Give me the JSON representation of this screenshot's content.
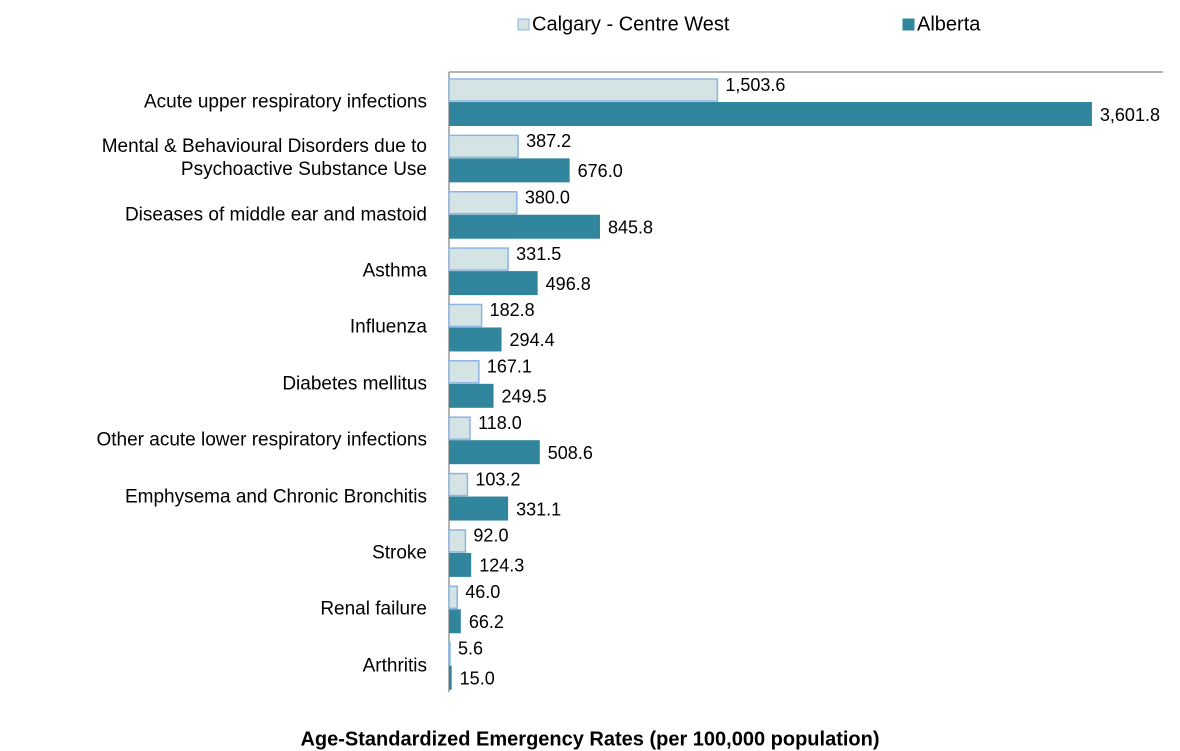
{
  "chart_data": {
    "type": "hbar",
    "title": "Age-Standardized Emergency Rates (per 100,000 population)",
    "categories": [
      "Acute upper respiratory infections",
      "Mental & Behavioural Disorders due to\nPsychoactive Substance Use",
      "Diseases of middle ear and mastoid",
      "Asthma",
      "Influenza",
      "Diabetes mellitus",
      "Other acute lower respiratory infections",
      "Emphysema and Chronic Bronchitis",
      "Stroke",
      "Renal failure",
      "Arthritis"
    ],
    "series": [
      {
        "name": "Calgary - Centre West",
        "color": "#d4e3e3",
        "stroke": "#8db4e2",
        "values": [
          1503.6,
          387.2,
          380.0,
          331.5,
          182.8,
          167.1,
          118.0,
          103.2,
          92.0,
          46.0,
          5.6
        ],
        "value_labels": [
          "1,503.6",
          "387.2",
          "380.0",
          "331.5",
          "182.8",
          "167.1",
          "118.0",
          "103.2",
          "92.0",
          "46.0",
          "5.6"
        ]
      },
      {
        "name": "Alberta",
        "color": "#31859c",
        "values": [
          3601.8,
          676.0,
          845.8,
          496.8,
          294.4,
          249.5,
          508.6,
          331.1,
          124.3,
          66.2,
          15.0
        ],
        "value_labels": [
          "3,601.8",
          "676.0",
          "845.8",
          "496.8",
          "294.4",
          "249.5",
          "508.6",
          "331.1",
          "124.3",
          "66.2",
          "15.0"
        ]
      }
    ],
    "xlim": [
      0,
      4000
    ],
    "legend": "top"
  }
}
